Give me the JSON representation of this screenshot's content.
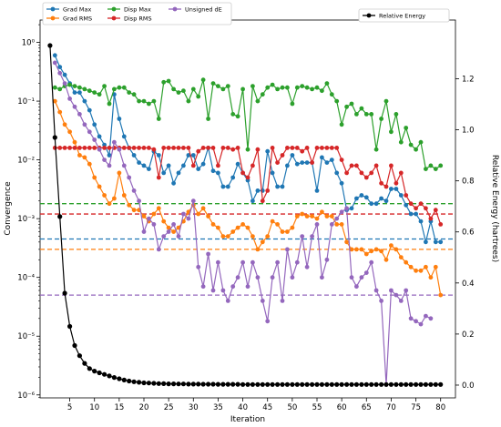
{
  "chart_data": {
    "type": "line",
    "title": "",
    "xlabel": "Iteration",
    "ylabel": "Convergence",
    "ylabel_right": "Relative Energy (hartrees)",
    "xlim": [
      -1,
      83
    ],
    "ylim_log10": [
      -6.05,
      0.38
    ],
    "y_scale": "log",
    "ylim_right": [
      -0.05,
      1.43
    ],
    "x_ticks": [
      5,
      10,
      15,
      20,
      25,
      30,
      35,
      40,
      45,
      50,
      55,
      60,
      65,
      70,
      75,
      80
    ],
    "x_tick_labels": [
      "5",
      "10",
      "15",
      "20",
      "25",
      "30",
      "35",
      "40",
      "45",
      "50",
      "55",
      "60",
      "65",
      "70",
      "75",
      "80"
    ],
    "y_ticks_log10": [
      0,
      -1,
      -2,
      -3,
      -4,
      -5,
      -6
    ],
    "y_tick_labels": [
      "10⁰",
      "10⁻¹",
      "10⁻²",
      "10⁻³",
      "10⁻⁴",
      "10⁻⁵",
      "10⁻⁶"
    ],
    "y_right_ticks": [
      0.0,
      0.2,
      0.4,
      0.6,
      0.8,
      1.0,
      1.2
    ],
    "y_right_tick_labels": [
      "0.0",
      "0.2",
      "0.4",
      "0.6",
      "0.8",
      "1.0",
      "1.2"
    ],
    "legend_left": "top-left",
    "legend_right": "top-right",
    "grid": false,
    "thresholds": [
      {
        "color": "#1f77b4",
        "value": 0.00045
      },
      {
        "color": "#ff7f0e",
        "value": 0.0003
      },
      {
        "color": "#2ca02c",
        "value": 0.0018
      },
      {
        "color": "#d62728",
        "value": 0.0012
      },
      {
        "color": "#9467bd",
        "value": 5e-05
      }
    ],
    "series": [
      {
        "name": "Grad Max",
        "color": "#1f77b4",
        "axis": "left",
        "x_start": 2,
        "values": [
          0.6,
          0.38,
          0.28,
          0.2,
          0.14,
          0.14,
          0.1,
          0.07,
          0.04,
          0.025,
          0.018,
          0.012,
          0.13,
          0.05,
          0.025,
          0.016,
          0.012,
          0.009,
          0.008,
          0.007,
          0.014,
          0.012,
          0.006,
          0.008,
          0.004,
          0.006,
          0.008,
          0.012,
          0.012,
          0.007,
          0.0085,
          0.016,
          0.0065,
          0.006,
          0.0035,
          0.0035,
          0.005,
          0.0085,
          0.006,
          0.0045,
          0.002,
          0.003,
          0.003,
          0.014,
          0.006,
          0.0035,
          0.0035,
          0.008,
          0.012,
          0.0085,
          0.009,
          0.009,
          0.009,
          0.003,
          0.011,
          0.009,
          0.01,
          0.006,
          0.004,
          0.0014,
          0.0015,
          0.0022,
          0.0025,
          0.0023,
          0.0018,
          0.0018,
          0.0022,
          0.002,
          0.0032,
          0.0032,
          0.0025,
          0.0017,
          0.0012,
          0.0012,
          0.0009,
          0.0004,
          0.0009,
          0.0004,
          0.0004
        ]
      },
      {
        "name": "Grad RMS",
        "color": "#ff7f0e",
        "axis": "left",
        "x_start": 2,
        "values": [
          0.1,
          0.065,
          0.04,
          0.03,
          0.02,
          0.012,
          0.011,
          0.0085,
          0.005,
          0.0035,
          0.0025,
          0.0018,
          0.0022,
          0.006,
          0.0025,
          0.0017,
          0.0014,
          0.0014,
          0.0011,
          0.0009,
          0.0012,
          0.0015,
          0.0009,
          0.0007,
          0.0006,
          0.0007,
          0.0009,
          0.0013,
          0.0017,
          0.0012,
          0.0015,
          0.0011,
          0.0008,
          0.0007,
          0.0005,
          0.0005,
          0.0006,
          0.0007,
          0.0008,
          0.0007,
          0.0005,
          0.0003,
          0.0004,
          0.0005,
          0.0009,
          0.0008,
          0.0006,
          0.0006,
          0.0007,
          0.0011,
          0.0012,
          0.0011,
          0.0011,
          0.001,
          0.0013,
          0.0011,
          0.0011,
          0.0008,
          0.0008,
          0.0004,
          0.0003,
          0.0003,
          0.0003,
          0.00025,
          0.00028,
          0.0003,
          0.00028,
          0.0002,
          0.00035,
          0.0003,
          0.00022,
          0.00018,
          0.00015,
          0.00013,
          0.00013,
          0.00015,
          0.0001,
          0.00015,
          5e-05
        ]
      },
      {
        "name": "Disp Max",
        "color": "#2ca02c",
        "axis": "left",
        "x_start": 2,
        "values": [
          0.17,
          0.16,
          0.18,
          0.19,
          0.18,
          0.17,
          0.16,
          0.15,
          0.14,
          0.13,
          0.18,
          0.09,
          0.16,
          0.17,
          0.17,
          0.14,
          0.13,
          0.1,
          0.1,
          0.09,
          0.1,
          0.05,
          0.21,
          0.22,
          0.16,
          0.14,
          0.15,
          0.1,
          0.16,
          0.12,
          0.23,
          0.05,
          0.2,
          0.18,
          0.16,
          0.18,
          0.06,
          0.055,
          0.16,
          0.015,
          0.18,
          0.1,
          0.13,
          0.17,
          0.19,
          0.16,
          0.17,
          0.17,
          0.09,
          0.17,
          0.18,
          0.17,
          0.16,
          0.17,
          0.15,
          0.2,
          0.13,
          0.1,
          0.04,
          0.08,
          0.09,
          0.06,
          0.075,
          0.06,
          0.06,
          0.015,
          0.05,
          0.1,
          0.03,
          0.06,
          0.02,
          0.035,
          0.018,
          0.015,
          0.02,
          0.007,
          0.008,
          0.007,
          0.008
        ]
      },
      {
        "name": "Disp RMS",
        "color": "#d62728",
        "axis": "left",
        "x_start": 2,
        "values": [
          0.016,
          0.016,
          0.016,
          0.016,
          0.016,
          0.016,
          0.016,
          0.016,
          0.016,
          0.016,
          0.016,
          0.016,
          0.016,
          0.016,
          0.016,
          0.016,
          0.016,
          0.016,
          0.016,
          0.016,
          0.015,
          0.005,
          0.016,
          0.016,
          0.016,
          0.016,
          0.016,
          0.016,
          0.008,
          0.014,
          0.016,
          0.016,
          0.016,
          0.008,
          0.016,
          0.016,
          0.015,
          0.016,
          0.006,
          0.005,
          0.008,
          0.015,
          0.002,
          0.003,
          0.016,
          0.009,
          0.012,
          0.016,
          0.016,
          0.016,
          0.014,
          0.016,
          0.009,
          0.016,
          0.016,
          0.016,
          0.016,
          0.016,
          0.01,
          0.006,
          0.008,
          0.008,
          0.006,
          0.005,
          0.006,
          0.008,
          0.004,
          0.0035,
          0.008,
          0.004,
          0.006,
          0.0025,
          0.0018,
          0.0015,
          0.0018,
          0.0015,
          0.001,
          0.0014,
          0.0008
        ]
      },
      {
        "name": "Unsigned dE",
        "color": "#9467bd",
        "axis": "left",
        "x_start": 2,
        "values": [
          0.45,
          0.3,
          0.2,
          0.11,
          0.08,
          0.06,
          0.04,
          0.03,
          0.022,
          0.015,
          0.01,
          0.008,
          0.02,
          0.015,
          0.008,
          0.005,
          0.003,
          0.002,
          0.0006,
          0.001,
          0.0008,
          0.0003,
          0.0005,
          0.0006,
          0.0008,
          0.0005,
          0.0012,
          0.001,
          0.002,
          0.00015,
          7e-05,
          0.00025,
          6e-05,
          0.00018,
          6e-05,
          4e-05,
          7e-05,
          0.0001,
          0.00018,
          7e-05,
          0.00018,
          0.0001,
          4e-05,
          1.8e-05,
          0.0001,
          0.00018,
          4e-05,
          0.0003,
          0.0001,
          0.00018,
          0.0005,
          0.00015,
          0.0005,
          0.0008,
          0.0001,
          0.0002,
          0.0008,
          0.001,
          0.0013,
          0.0015,
          0.0001,
          7e-05,
          0.0001,
          0.00012,
          0.00018,
          6e-05,
          4e-05,
          1.5e-06,
          6e-05,
          5e-05,
          4e-05,
          6e-05,
          2e-05,
          1.8e-05,
          1.6e-05,
          2.2e-05,
          2e-05
        ]
      },
      {
        "name": "Relative Energy",
        "color": "#000000",
        "axis": "right",
        "x_start": 1,
        "values": [
          1.33,
          0.97,
          0.66,
          0.36,
          0.23,
          0.155,
          0.115,
          0.085,
          0.065,
          0.055,
          0.048,
          0.042,
          0.036,
          0.03,
          0.025,
          0.02,
          0.016,
          0.013,
          0.011,
          0.009,
          0.008,
          0.007,
          0.006,
          0.0055,
          0.005,
          0.005,
          0.0045,
          0.0045,
          0.004,
          0.004,
          0.004,
          0.0035,
          0.0035,
          0.0035,
          0.003,
          0.003,
          0.003,
          0.003,
          0.003,
          0.0025,
          0.0025,
          0.0025,
          0.0025,
          0.0025,
          0.0025,
          0.0025,
          0.0025,
          0.0025,
          0.0025,
          0.0025,
          0.0025,
          0.0025,
          0.0025,
          0.0025,
          0.0025,
          0.0025,
          0.0025,
          0.0025,
          0.0025,
          0.0025,
          0.0025,
          0.0025,
          0.0025,
          0.0025,
          0.0025,
          0.0025,
          0.0025,
          0.0025,
          0.0025,
          0.0025,
          0.0025,
          0.0025,
          0.0025,
          0.0025,
          0.0025,
          0.0025,
          0.0025,
          0.0025,
          0.0025,
          0.0025
        ]
      }
    ]
  }
}
